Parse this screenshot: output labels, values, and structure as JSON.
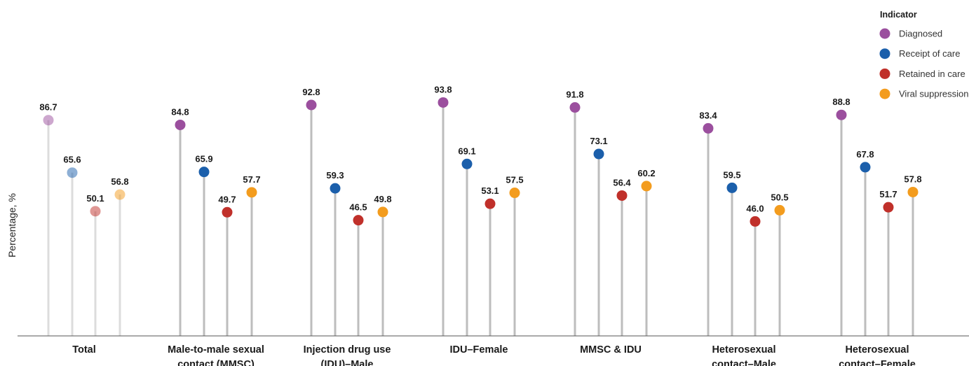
{
  "chart_data": {
    "type": "scatter",
    "style": "lollipop",
    "ylabel": "Percentage, %",
    "ylim": [
      0,
      100
    ],
    "grid": false,
    "legend": {
      "title": "Indicator",
      "placement": "top-right",
      "entries": [
        "Diagnosed",
        "Receipt of care",
        "Retained in care",
        "Viral suppression"
      ]
    },
    "categories": [
      [
        "Total"
      ],
      [
        "Male-to-male sexual",
        "contact (MMSC)"
      ],
      [
        "Injection drug use",
        "(IDU)–Male"
      ],
      [
        "IDU–Female"
      ],
      [
        "MMSC & IDU"
      ],
      [
        "Heterosexual",
        "contact–Male"
      ],
      [
        "Heterosexual",
        "contact–Female"
      ]
    ],
    "highlighted_categories": [
      false,
      true,
      true,
      true,
      true,
      true,
      true
    ],
    "series": [
      {
        "name": "Diagnosed",
        "color": "#9b4f9e",
        "values": [
          86.7,
          84.8,
          92.8,
          93.8,
          91.8,
          83.4,
          88.8
        ]
      },
      {
        "name": "Receipt of care",
        "color": "#1b5fab",
        "values": [
          65.6,
          65.9,
          59.3,
          69.1,
          73.1,
          59.5,
          67.8
        ]
      },
      {
        "name": "Retained in care",
        "color": "#c0302a",
        "values": [
          50.1,
          49.7,
          46.5,
          53.1,
          56.4,
          46.0,
          51.7
        ]
      },
      {
        "name": "Viral suppression",
        "color": "#f39c1e",
        "values": [
          56.8,
          57.7,
          49.8,
          57.5,
          60.2,
          50.5,
          57.8
        ]
      }
    ],
    "value_labels": [
      [
        "86.7",
        "65.6",
        "50.1",
        "56.8"
      ],
      [
        "84.8",
        "65.9",
        "49.7",
        "57.7"
      ],
      [
        "92.8",
        "59.3",
        "46.5",
        "49.8"
      ],
      [
        "93.8",
        "69.1",
        "53.1",
        "57.5"
      ],
      [
        "91.8",
        "73.1",
        "56.4",
        "60.2"
      ],
      [
        "83.4",
        "59.5",
        "46.0",
        "50.5"
      ],
      [
        "88.8",
        "67.8",
        "51.7",
        "57.8"
      ]
    ]
  }
}
